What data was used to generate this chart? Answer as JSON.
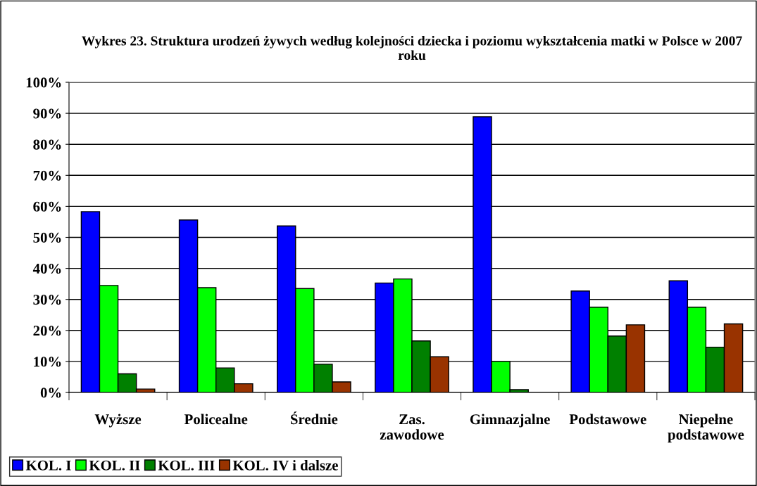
{
  "chart_data": {
    "type": "bar",
    "title": "Wykres 23. Struktura urodzeń żywych według kolejności dziecka i poziomu wykształcenia matki w Polsce w 2007 roku",
    "categories": [
      "Wyższe",
      "Policealne",
      "Średnie",
      "Zas.\nzawodowe",
      "Gimnazjalne",
      "Podstawowe",
      "Niepełne\npodstawowe"
    ],
    "series": [
      {
        "name": "KOL. I",
        "color": "#0000ff",
        "values": [
          58.3,
          55.6,
          53.7,
          35.3,
          88.9,
          32.7,
          36.0
        ]
      },
      {
        "name": "KOL. II",
        "color": "#00ff00",
        "values": [
          34.5,
          33.8,
          33.5,
          36.6,
          10.0,
          27.5,
          27.5
        ]
      },
      {
        "name": "KOL. III",
        "color": "#008000",
        "values": [
          6.0,
          7.9,
          9.1,
          16.6,
          0.9,
          18.2,
          14.6
        ]
      },
      {
        "name": "KOL. IV i dalsze",
        "color": "#993300",
        "values": [
          1.1,
          2.8,
          3.4,
          11.5,
          null,
          21.8,
          22.1
        ]
      }
    ],
    "ylim": [
      0,
      100
    ],
    "yticks": [
      {
        "value": 0,
        "label": "0%"
      },
      {
        "value": 10,
        "label": "10%"
      },
      {
        "value": 20,
        "label": "20%"
      },
      {
        "value": 30,
        "label": "30%"
      },
      {
        "value": 40,
        "label": "40%"
      },
      {
        "value": 50,
        "label": "50%"
      },
      {
        "value": 60,
        "label": "60%"
      },
      {
        "value": 70,
        "label": "70%"
      },
      {
        "value": 80,
        "label": "80%"
      },
      {
        "value": 90,
        "label": "90%"
      },
      {
        "value": 100,
        "label": "100%"
      }
    ],
    "grid": "y",
    "legend": "bottom left"
  }
}
